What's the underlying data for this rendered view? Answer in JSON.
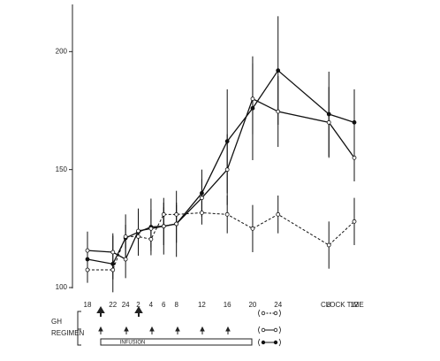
{
  "chart_data": {
    "type": "line",
    "categories": [
      "18",
      "22",
      "24",
      "2",
      "4",
      "6",
      "8",
      "12",
      "16",
      "20",
      "24",
      "8",
      "12"
    ],
    "x_label": "CLOCK TIME",
    "ylim": [
      100,
      220
    ],
    "yticks": [
      100,
      150,
      200
    ],
    "series": [
      {
        "color": "#111111",
        "style": "solid",
        "marker": "filled",
        "values": [
          112,
          110,
          121,
          123.5,
          125.7,
          126,
          127,
          140,
          162,
          176,
          192,
          173.5,
          170
        ],
        "errors": [
          10,
          12,
          10,
          10,
          12,
          12,
          14,
          10,
          22,
          22,
          23,
          18,
          14
        ]
      },
      {
        "color": "#111111",
        "style": "solid",
        "marker": "open",
        "values": [
          115.7,
          115,
          112,
          124,
          125,
          126,
          127,
          138,
          150,
          180,
          174.6,
          170,
          155
        ],
        "errors": [
          8,
          8,
          8,
          8,
          8,
          8,
          8,
          8,
          15,
          15,
          15,
          15,
          10
        ]
      },
      {
        "color": "#111111",
        "style": "dashed",
        "marker": "open",
        "values": [
          107.5,
          107.5,
          121.6,
          121.6,
          120.5,
          131,
          131,
          131.7,
          131,
          125,
          131,
          118,
          128
        ],
        "errors": [
          5,
          4,
          5,
          5,
          5,
          5,
          5,
          5,
          8,
          10,
          8,
          10,
          10
        ]
      }
    ],
    "regimen_label": [
      "GH",
      "REGIMEN"
    ],
    "infusion_label": "INFUSION"
  }
}
